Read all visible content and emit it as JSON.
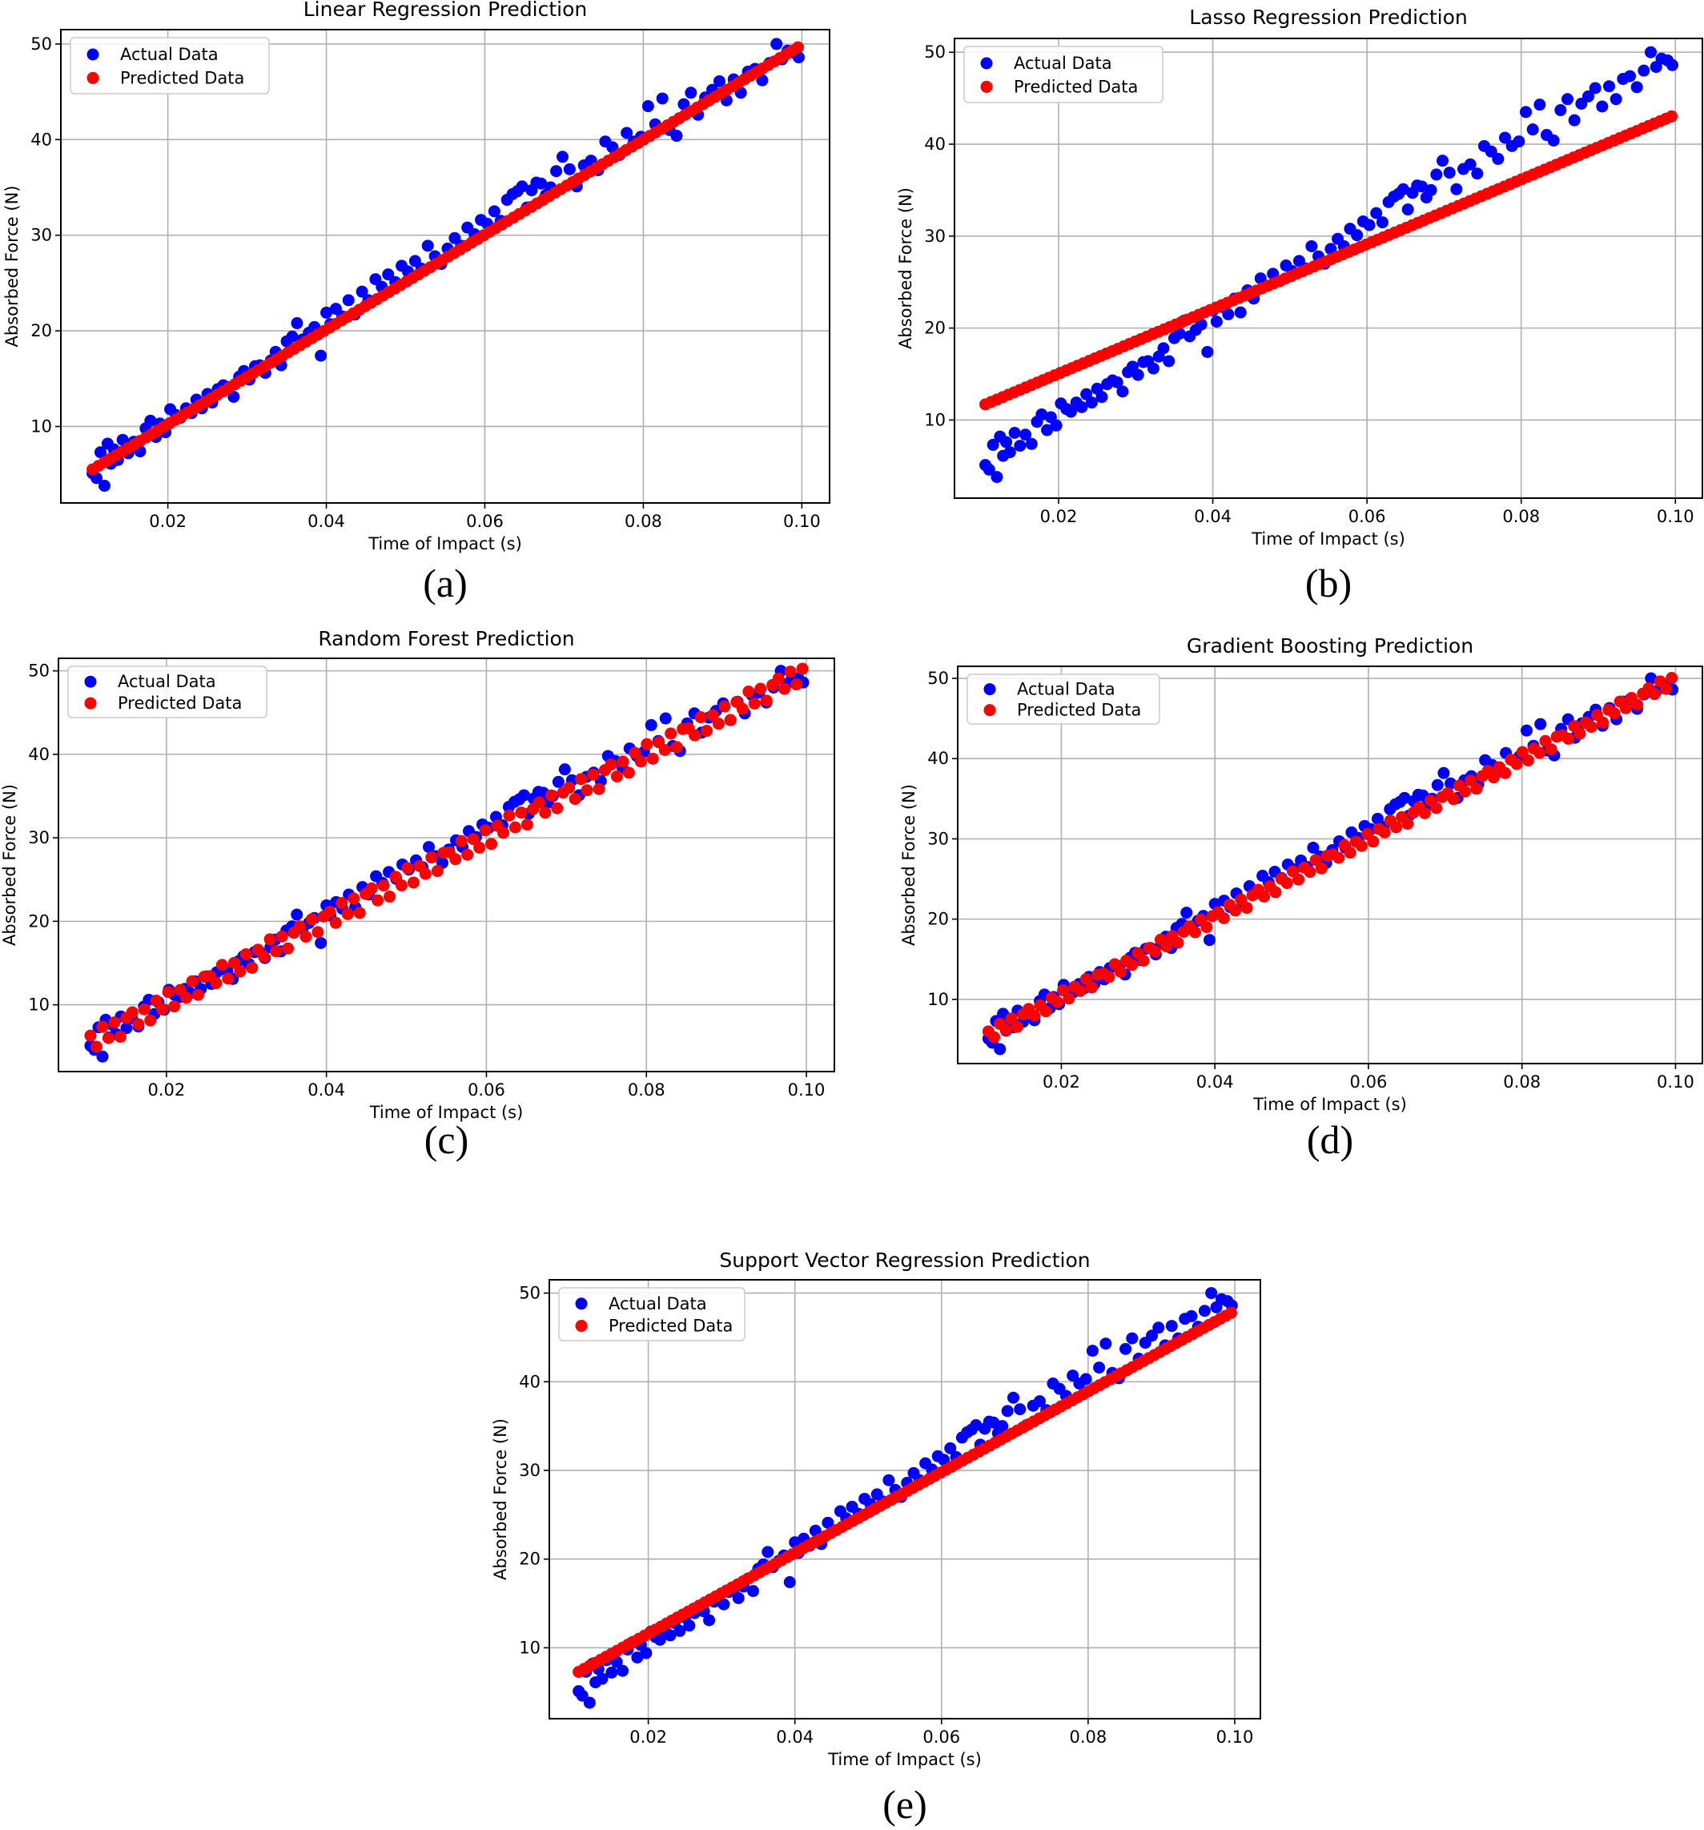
{
  "chart_data": [
    {
      "id": "a",
      "type": "scatter",
      "caption": "(a)",
      "title": "Linear Regression Prediction",
      "xlabel": "Time of Impact (s)",
      "ylabel": "Absorbed Force (N)",
      "xlim": [
        0.0065,
        0.1035
      ],
      "ylim": [
        2.0,
        51.5
      ],
      "xticks": [
        "0.02",
        "0.04",
        "0.06",
        "0.08",
        "0.10"
      ],
      "yticks": [
        "10",
        "20",
        "30",
        "40",
        "50"
      ],
      "grid": true,
      "legend_position": "upper-left",
      "series": [
        {
          "name": "Actual Data",
          "color": "#0000ff"
        },
        {
          "name": "Predicted Data",
          "color": "#ff0000"
        }
      ],
      "prediction": {
        "model": "linear",
        "slope": 496,
        "intercept": 0.3,
        "x_start": 0.0105,
        "x_end": 0.0995
      }
    },
    {
      "id": "b",
      "type": "scatter",
      "caption": "(b)",
      "title": "Lasso Regression Prediction",
      "xlabel": "Time of Impact (s)",
      "ylabel": "Absorbed Force (N)",
      "xlim": [
        0.0065,
        0.1035
      ],
      "ylim": [
        1.5,
        51.5
      ],
      "xticks": [
        "0.02",
        "0.04",
        "0.06",
        "0.08",
        "0.10"
      ],
      "yticks": [
        "10",
        "20",
        "30",
        "40",
        "50"
      ],
      "grid": true,
      "legend_position": "upper-left",
      "series": [
        {
          "name": "Actual Data",
          "color": "#0000ff"
        },
        {
          "name": "Predicted Data",
          "color": "#ff0000"
        }
      ],
      "prediction": {
        "model": "lasso",
        "slope": 352,
        "intercept": 8.0,
        "x_start": 0.0105,
        "x_end": 0.0995
      }
    },
    {
      "id": "c",
      "type": "scatter",
      "caption": "(c)",
      "title": "Random Forest Prediction",
      "xlabel": "Time of Impact (s)",
      "ylabel": "Absorbed Force (N)",
      "xlim": [
        0.0065,
        0.1035
      ],
      "ylim": [
        2.0,
        51.5
      ],
      "xticks": [
        "0.02",
        "0.04",
        "0.06",
        "0.08",
        "0.10"
      ],
      "yticks": [
        "10",
        "20",
        "30",
        "40",
        "50"
      ],
      "grid": true,
      "legend_position": "upper-left",
      "series": [
        {
          "name": "Actual Data",
          "color": "#0000ff"
        },
        {
          "name": "Predicted Data",
          "color": "#ff0000"
        }
      ],
      "prediction": {
        "model": "random-forest",
        "slope": 496,
        "intercept": 0.3,
        "x_start": 0.0105,
        "x_end": 0.0995
      }
    },
    {
      "id": "d",
      "type": "scatter",
      "caption": "(d)",
      "title": "Gradient Boosting Prediction",
      "xlabel": "Time of Impact (s)",
      "ylabel": "Absorbed Force (N)",
      "xlim": [
        0.0065,
        0.1035
      ],
      "ylim": [
        2.0,
        51.5
      ],
      "xticks": [
        "0.02",
        "0.04",
        "0.06",
        "0.08",
        "0.10"
      ],
      "yticks": [
        "10",
        "20",
        "30",
        "40",
        "50"
      ],
      "grid": true,
      "legend_position": "upper-left",
      "series": [
        {
          "name": "Actual Data",
          "color": "#0000ff"
        },
        {
          "name": "Predicted Data",
          "color": "#ff0000"
        }
      ],
      "prediction": {
        "model": "gradient-boosting",
        "slope": 496,
        "intercept": 0.3,
        "x_start": 0.0105,
        "x_end": 0.0995
      }
    },
    {
      "id": "e",
      "type": "scatter",
      "caption": "(e)",
      "title": "Support Vector Regression Prediction",
      "xlabel": "Time of Impact (s)",
      "ylabel": "Absorbed Force (N)",
      "xlim": [
        0.0065,
        0.1035
      ],
      "ylim": [
        2.0,
        51.5
      ],
      "xticks": [
        "0.02",
        "0.04",
        "0.06",
        "0.08",
        "0.10"
      ],
      "yticks": [
        "10",
        "20",
        "30",
        "40",
        "50"
      ],
      "grid": true,
      "legend_position": "upper-left",
      "series": [
        {
          "name": "Actual Data",
          "color": "#0000ff"
        },
        {
          "name": "Predicted Data",
          "color": "#ff0000"
        }
      ],
      "prediction": {
        "model": "svr",
        "slope": 455,
        "intercept": 2.5,
        "x_start": 0.0105,
        "x_end": 0.0995
      }
    }
  ],
  "actual_data": {
    "x": [
      0.0105,
      0.011,
      0.0115,
      0.012,
      0.0124,
      0.0128,
      0.0132,
      0.0137,
      0.0143,
      0.015,
      0.0157,
      0.0165,
      0.0172,
      0.0178,
      0.0185,
      0.019,
      0.0197,
      0.0203,
      0.021,
      0.0216,
      0.0223,
      0.023,
      0.0236,
      0.0243,
      0.025,
      0.0256,
      0.0263,
      0.027,
      0.0276,
      0.0283,
      0.029,
      0.0296,
      0.0303,
      0.031,
      0.0316,
      0.0323,
      0.033,
      0.0336,
      0.0343,
      0.035,
      0.0357,
      0.0363,
      0.037,
      0.0378,
      0.0385,
      0.0393,
      0.04,
      0.0405,
      0.0412,
      0.042,
      0.0428,
      0.0436,
      0.0445,
      0.0453,
      0.0462,
      0.047,
      0.0478,
      0.0487,
      0.0495,
      0.0503,
      0.0512,
      0.052,
      0.0528,
      0.0537,
      0.0545,
      0.0553,
      0.0562,
      0.057,
      0.0578,
      0.0587,
      0.0595,
      0.0603,
      0.0612,
      0.062,
      0.0628,
      0.0635,
      0.0641,
      0.0647,
      0.0653,
      0.0659,
      0.0665,
      0.0671,
      0.0677,
      0.0683,
      0.069,
      0.0698,
      0.0707,
      0.0716,
      0.0725,
      0.0734,
      0.0743,
      0.0752,
      0.0761,
      0.077,
      0.0779,
      0.0788,
      0.0797,
      0.0806,
      0.0815,
      0.0824,
      0.0833,
      0.0842,
      0.0851,
      0.086,
      0.0869,
      0.0878,
      0.0887,
      0.0896,
      0.0905,
      0.0914,
      0.0923,
      0.0932,
      0.0941,
      0.095,
      0.0959,
      0.0968,
      0.0975,
      0.0982,
      0.099,
      0.0996
    ],
    "y": [
      5.1,
      4.6,
      7.3,
      3.8,
      8.2,
      6.1,
      7.6,
      6.5,
      8.6,
      7.2,
      8.4,
      7.4,
      9.8,
      10.6,
      8.9,
      10.3,
      9.4,
      11.8,
      11.2,
      10.9,
      11.9,
      11.4,
      12.8,
      11.9,
      13.4,
      12.5,
      13.9,
      14.3,
      14.1,
      13.1,
      15.2,
      15.8,
      14.9,
      16.3,
      16.4,
      15.6,
      16.9,
      17.8,
      16.4,
      18.9,
      19.4,
      20.8,
      19.1,
      19.8,
      20.4,
      17.4,
      21.9,
      20.7,
      22.3,
      21.5,
      23.2,
      21.7,
      24.1,
      23.2,
      25.4,
      24.6,
      25.9,
      25.1,
      26.8,
      26.2,
      27.3,
      26.5,
      28.9,
      27.8,
      27.0,
      28.6,
      29.7,
      28.9,
      30.8,
      30.1,
      31.6,
      31.2,
      32.5,
      31.5,
      33.7,
      34.3,
      34.6,
      35.1,
      32.9,
      34.7,
      35.5,
      35.4,
      34.2,
      35.0,
      36.7,
      38.2,
      36.9,
      35.1,
      37.3,
      37.8,
      36.8,
      39.8,
      39.2,
      38.4,
      40.7,
      39.8,
      40.3,
      43.5,
      41.6,
      44.3,
      41.0,
      40.4,
      43.7,
      44.9,
      42.6,
      44.4,
      45.2,
      46.1,
      44.1,
      46.3,
      44.9,
      47.1,
      47.4,
      46.2,
      48.0,
      50.0,
      48.4,
      49.3,
      49.1,
      48.6
    ]
  },
  "random_forest_noise": [
    0.8,
    -0.9,
    1.1,
    -0.6,
    0.9,
    -1.2,
    0.7,
    1.0,
    -0.8,
    0.6,
    -1.1,
    0.9,
    -0.5,
    1.2,
    -0.9,
    0.7,
    -0.6,
    1.0,
    -1.0,
    0.8,
    0.5,
    -0.7,
    1.1,
    -0.9,
    0.6,
    -0.8,
    0.9,
    -1.1,
    0.7,
    -0.5,
    1.2,
    -0.6,
    0.8,
    -1.0,
    0.5,
    0.9,
    -0.7,
    1.0,
    -0.9,
    0.6
  ],
  "gradient_boosting_noise": [
    0.5,
    -0.6,
    0.7,
    -0.4,
    0.6,
    -0.8,
    0.4,
    0.7,
    -0.5,
    0.4,
    -0.7,
    0.6,
    -0.3,
    0.8,
    -0.6,
    0.5,
    -0.4,
    0.7,
    -0.7,
    0.5,
    0.3,
    -0.5,
    0.7,
    -0.6,
    0.4,
    -0.5,
    0.6,
    -0.7,
    0.5,
    -0.3,
    0.8,
    -0.4,
    0.5,
    -0.7,
    0.3,
    0.6,
    -0.5,
    0.7,
    -0.6,
    0.4
  ]
}
